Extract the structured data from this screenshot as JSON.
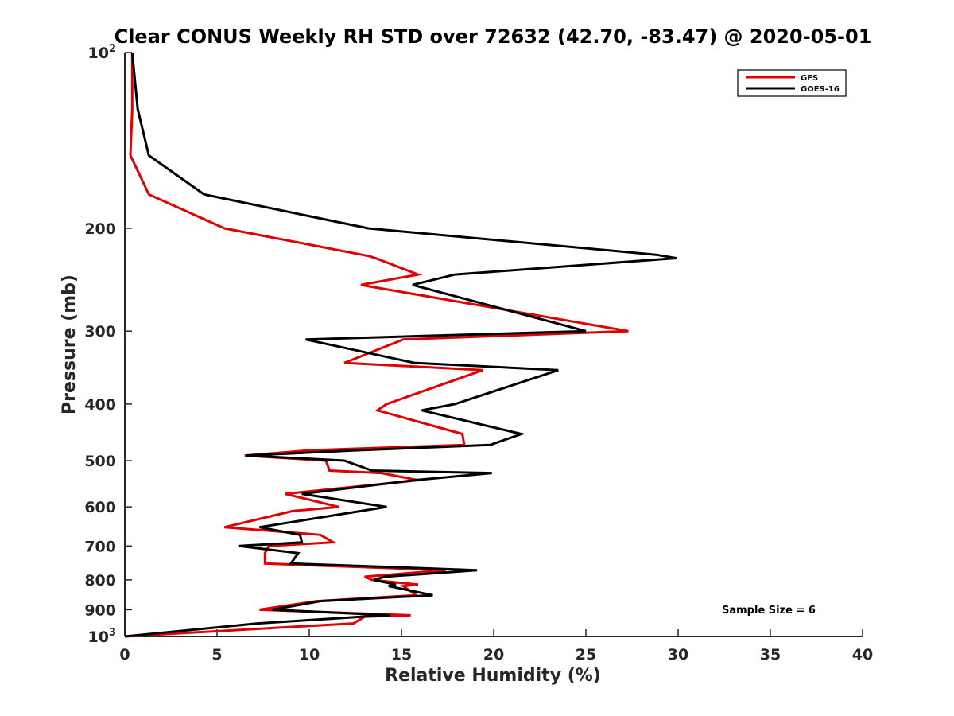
{
  "chart_data": {
    "type": "line",
    "title": "Clear CONUS Weekly RH STD over 72632 (42.70, -83.47) @ 2020-05-01",
    "xlabel": "Relative Humidity (%)",
    "ylabel": "Pressure (mb)",
    "xlim": [
      0,
      40
    ],
    "ylim": [
      100,
      1000
    ],
    "y_scale": "log",
    "y_reversed": true,
    "grid": false,
    "legend_position": "top-right",
    "x_ticks": [
      0,
      5,
      10,
      15,
      20,
      25,
      30,
      35,
      40
    ],
    "y_ticks": [
      {
        "value": 100,
        "base": "10",
        "exp": "2"
      },
      {
        "value": 200,
        "label": "200"
      },
      {
        "value": 300,
        "label": "300"
      },
      {
        "value": 400,
        "label": "400"
      },
      {
        "value": 500,
        "label": "500"
      },
      {
        "value": 600,
        "label": "600"
      },
      {
        "value": 700,
        "label": "700"
      },
      {
        "value": 800,
        "label": "800"
      },
      {
        "value": 900,
        "label": "900"
      },
      {
        "value": 1000,
        "base": "10",
        "exp": "3"
      }
    ],
    "series": [
      {
        "name": "GFS",
        "color": "#e00000",
        "points": [
          [
            0.4,
            100
          ],
          [
            0.4,
            125
          ],
          [
            0.3,
            150
          ],
          [
            1.3,
            175
          ],
          [
            5.4,
            200
          ],
          [
            13.2,
            223
          ],
          [
            13.6,
            225
          ],
          [
            15.9,
            240
          ],
          [
            12.8,
            250
          ],
          [
            27.3,
            300
          ],
          [
            15.1,
            310
          ],
          [
            11.9,
            340
          ],
          [
            19.4,
            350
          ],
          [
            14.2,
            400
          ],
          [
            13.7,
            410
          ],
          [
            18.3,
            450
          ],
          [
            18.4,
            470
          ],
          [
            10.0,
            480
          ],
          [
            6.5,
            490
          ],
          [
            10.9,
            500
          ],
          [
            11.1,
            520
          ],
          [
            13.9,
            525
          ],
          [
            15.9,
            540
          ],
          [
            8.7,
            570
          ],
          [
            11.6,
            600
          ],
          [
            9.1,
            610
          ],
          [
            5.4,
            650
          ],
          [
            10.6,
            670
          ],
          [
            11.3,
            690
          ],
          [
            7.8,
            700
          ],
          [
            7.6,
            720
          ],
          [
            7.6,
            750
          ],
          [
            17.4,
            770
          ],
          [
            13.0,
            790
          ],
          [
            13.4,
            800
          ],
          [
            15.9,
            815
          ],
          [
            15.1,
            820
          ],
          [
            15.8,
            850
          ],
          [
            10.4,
            870
          ],
          [
            7.3,
            900
          ],
          [
            15.5,
            920
          ],
          [
            13.0,
            925
          ],
          [
            12.4,
            950
          ],
          [
            0,
            1000
          ]
        ]
      },
      {
        "name": "GOES-16",
        "color": "#000000",
        "points": [
          [
            0.4,
            100
          ],
          [
            0.7,
            125
          ],
          [
            1.3,
            150
          ],
          [
            4.3,
            175
          ],
          [
            13.2,
            200
          ],
          [
            28.8,
            222
          ],
          [
            29.9,
            225
          ],
          [
            17.9,
            240
          ],
          [
            15.6,
            250
          ],
          [
            25.0,
            300
          ],
          [
            9.8,
            310
          ],
          [
            15.7,
            340
          ],
          [
            23.5,
            350
          ],
          [
            17.9,
            400
          ],
          [
            16.1,
            410
          ],
          [
            21.5,
            450
          ],
          [
            19.8,
            470
          ],
          [
            12.6,
            480
          ],
          [
            6.6,
            490
          ],
          [
            11.9,
            500
          ],
          [
            13.4,
            520
          ],
          [
            19.9,
            525
          ],
          [
            15.7,
            540
          ],
          [
            9.6,
            570
          ],
          [
            14.2,
            600
          ],
          [
            12.8,
            610
          ],
          [
            7.3,
            650
          ],
          [
            9.5,
            670
          ],
          [
            9.6,
            690
          ],
          [
            6.2,
            700
          ],
          [
            9.4,
            720
          ],
          [
            9.0,
            750
          ],
          [
            19.1,
            770
          ],
          [
            14.1,
            790
          ],
          [
            13.5,
            800
          ],
          [
            14.7,
            815
          ],
          [
            14.3,
            820
          ],
          [
            16.7,
            850
          ],
          [
            10.6,
            870
          ],
          [
            8.0,
            900
          ],
          [
            14.4,
            920
          ],
          [
            12.9,
            925
          ],
          [
            7.2,
            950
          ],
          [
            0,
            1000
          ]
        ]
      }
    ],
    "annotation": "Sample Size = 6"
  }
}
